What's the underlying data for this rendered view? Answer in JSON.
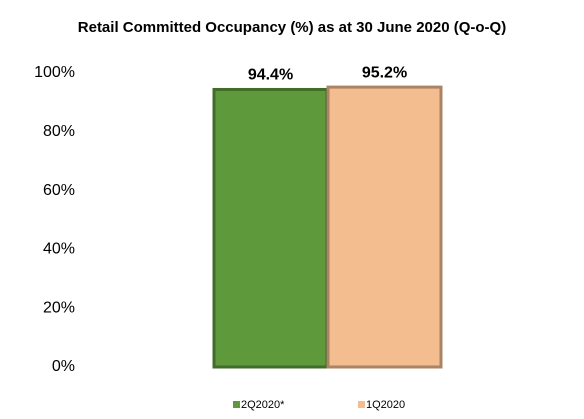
{
  "chart_data": {
    "type": "bar",
    "title": "Retail Committed Occupancy (%) as at 30 June 2020 (Q-o-Q)",
    "series": [
      {
        "name": "2Q2020*",
        "color": "#5e9a3b",
        "values": [
          94.4
        ],
        "value_labels": [
          "94.4%"
        ]
      },
      {
        "name": "1Q2020",
        "color": "#f3bd8f",
        "values": [
          95.2
        ],
        "value_labels": [
          "95.2%"
        ]
      }
    ],
    "ylim": [
      0,
      100
    ],
    "yticks": [
      {
        "value": 0,
        "label": "0%"
      },
      {
        "value": 20,
        "label": "20%"
      },
      {
        "value": 40,
        "label": "40%"
      },
      {
        "value": 60,
        "label": "60%"
      },
      {
        "value": 80,
        "label": "80%"
      },
      {
        "value": 100,
        "label": "100%"
      }
    ],
    "grid": false,
    "legend": "bottom"
  }
}
